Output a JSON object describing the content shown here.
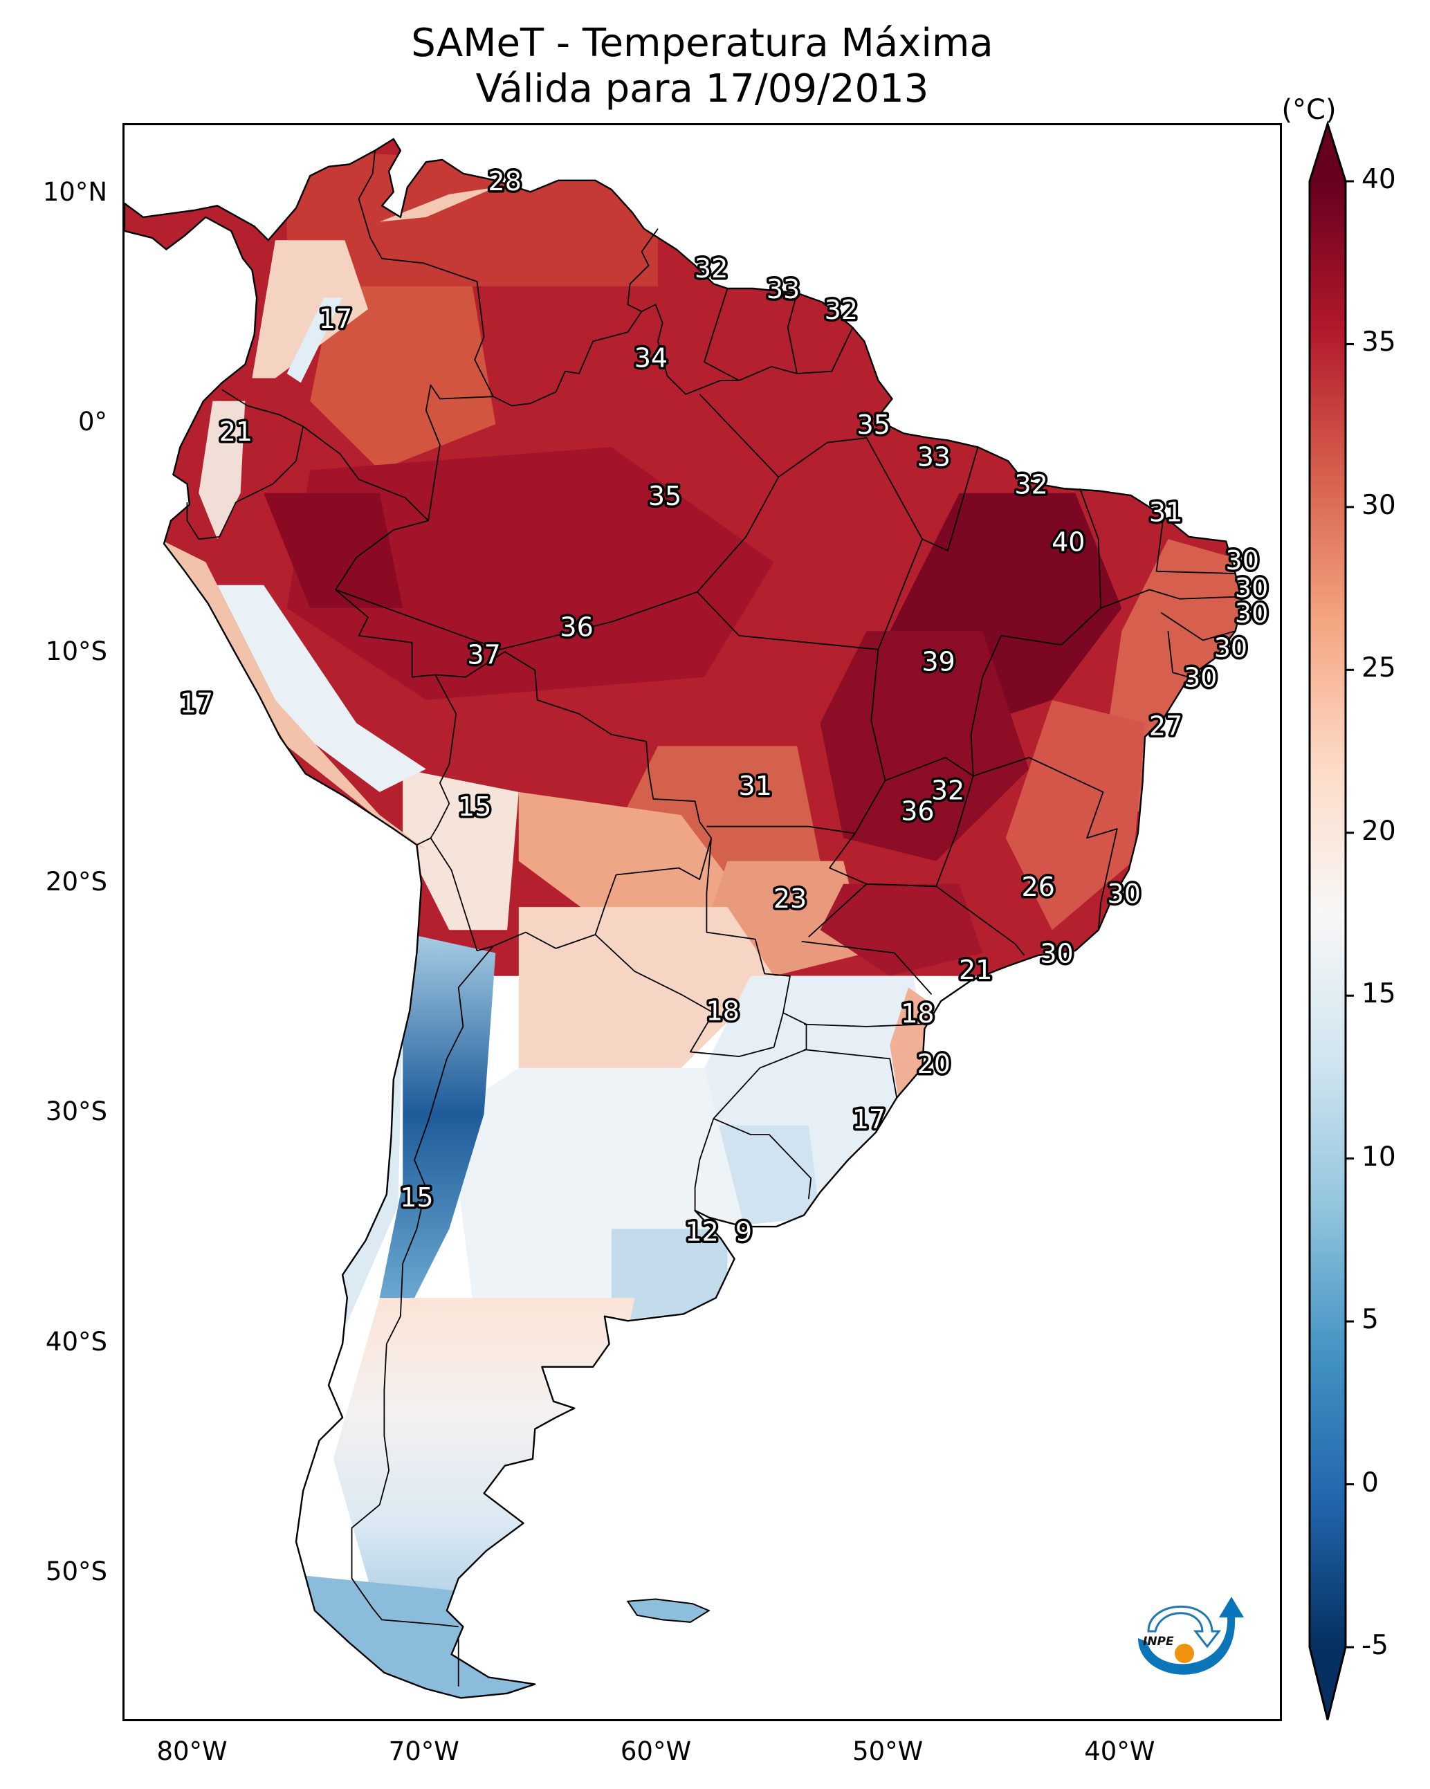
{
  "title": {
    "line1": "SAMeT - Temperatura Máxima",
    "line2": "Válida para 17/09/2013"
  },
  "logo": {
    "text": "INPE",
    "icon": "inpe-logo"
  },
  "chart_data": {
    "type": "heatmap",
    "title": "SAMeT - Temperatura Máxima",
    "subtitle": "Válida para 17/09/2013",
    "variable": "Temperatura Máxima",
    "units": "(°C)",
    "xlabel": "",
    "ylabel": "",
    "xlim": [
      -83,
      -33
    ],
    "ylim": [
      -56.5,
      13
    ],
    "x_ticks": [
      {
        "value": -80,
        "label": "80°W"
      },
      {
        "value": -70,
        "label": "70°W"
      },
      {
        "value": -60,
        "label": "60°W"
      },
      {
        "value": -50,
        "label": "50°W"
      },
      {
        "value": -40,
        "label": "40°W"
      }
    ],
    "y_ticks": [
      {
        "value": 10,
        "label": "10°N"
      },
      {
        "value": 0,
        "label": "0°"
      },
      {
        "value": -10,
        "label": "10°S"
      },
      {
        "value": -20,
        "label": "20°S"
      },
      {
        "value": -30,
        "label": "30°S"
      },
      {
        "value": -40,
        "label": "40°S"
      },
      {
        "value": -50,
        "label": "50°S"
      }
    ],
    "grid": false,
    "colorbar": {
      "label": "(°C)",
      "range": [
        -5,
        40
      ],
      "extend": "both",
      "placement": "right",
      "colormap": "RdBu_r",
      "ticks": [
        40,
        35,
        30,
        25,
        20,
        15,
        10,
        5,
        0,
        -5
      ],
      "tick_labels": [
        "40",
        "35",
        "30",
        "25",
        "20",
        "15",
        "10",
        "5",
        "0",
        "-5"
      ],
      "colors": [
        "#053061",
        "#2166ac",
        "#4393c3",
        "#92c5de",
        "#d1e5f0",
        "#f7f7f7",
        "#fddbc7",
        "#f4a582",
        "#d6604d",
        "#b2182b",
        "#67001f"
      ]
    },
    "annotations": [
      {
        "value": 28,
        "lon": -66.6,
        "lat": 10.6
      },
      {
        "value": 32,
        "lon": -57.7,
        "lat": 6.8
      },
      {
        "value": 33,
        "lon": -54.6,
        "lat": 5.9
      },
      {
        "value": 32,
        "lon": -52.1,
        "lat": 5.0
      },
      {
        "value": 34,
        "lon": -60.3,
        "lat": 2.9
      },
      {
        "value": 17,
        "lon": -73.9,
        "lat": 4.6
      },
      {
        "value": 21,
        "lon": -78.2,
        "lat": -0.3
      },
      {
        "value": 35,
        "lon": -50.7,
        "lat": 0.0
      },
      {
        "value": 33,
        "lon": -48.1,
        "lat": -1.4
      },
      {
        "value": 35,
        "lon": -59.7,
        "lat": -3.1
      },
      {
        "value": 32,
        "lon": -43.9,
        "lat": -2.6
      },
      {
        "value": 31,
        "lon": -38.1,
        "lat": -3.8
      },
      {
        "value": 40,
        "lon": -42.3,
        "lat": -5.1
      },
      {
        "value": 30,
        "lon": -34.8,
        "lat": -5.9
      },
      {
        "value": 30,
        "lon": -34.4,
        "lat": -7.1
      },
      {
        "value": 30,
        "lon": -34.4,
        "lat": -8.2
      },
      {
        "value": 30,
        "lon": -35.3,
        "lat": -9.7
      },
      {
        "value": 30,
        "lon": -36.6,
        "lat": -11.0
      },
      {
        "value": 36,
        "lon": -63.5,
        "lat": -8.8
      },
      {
        "value": 37,
        "lon": -67.5,
        "lat": -10.0
      },
      {
        "value": 39,
        "lon": -47.9,
        "lat": -10.3
      },
      {
        "value": 17,
        "lon": -79.9,
        "lat": -12.1
      },
      {
        "value": 27,
        "lon": -38.1,
        "lat": -13.1
      },
      {
        "value": 31,
        "lon": -55.8,
        "lat": -15.7
      },
      {
        "value": 32,
        "lon": -47.5,
        "lat": -15.9
      },
      {
        "value": 36,
        "lon": -48.8,
        "lat": -16.8
      },
      {
        "value": 15,
        "lon": -67.9,
        "lat": -16.6
      },
      {
        "value": 23,
        "lon": -54.3,
        "lat": -20.6
      },
      {
        "value": 26,
        "lon": -43.6,
        "lat": -20.1
      },
      {
        "value": 30,
        "lon": -39.9,
        "lat": -20.4
      },
      {
        "value": 30,
        "lon": -42.8,
        "lat": -23.0
      },
      {
        "value": 21,
        "lon": -46.3,
        "lat": -23.7
      },
      {
        "value": 18,
        "lon": -57.2,
        "lat": -25.5
      },
      {
        "value": 18,
        "lon": -48.8,
        "lat": -25.6
      },
      {
        "value": 20,
        "lon": -48.1,
        "lat": -27.8
      },
      {
        "value": 17,
        "lon": -50.9,
        "lat": -30.2
      },
      {
        "value": 15,
        "lon": -70.4,
        "lat": -33.6
      },
      {
        "value": 12,
        "lon": -58.1,
        "lat": -35.1
      },
      {
        "value": 9,
        "lon": -56.3,
        "lat": -35.1
      }
    ]
  }
}
